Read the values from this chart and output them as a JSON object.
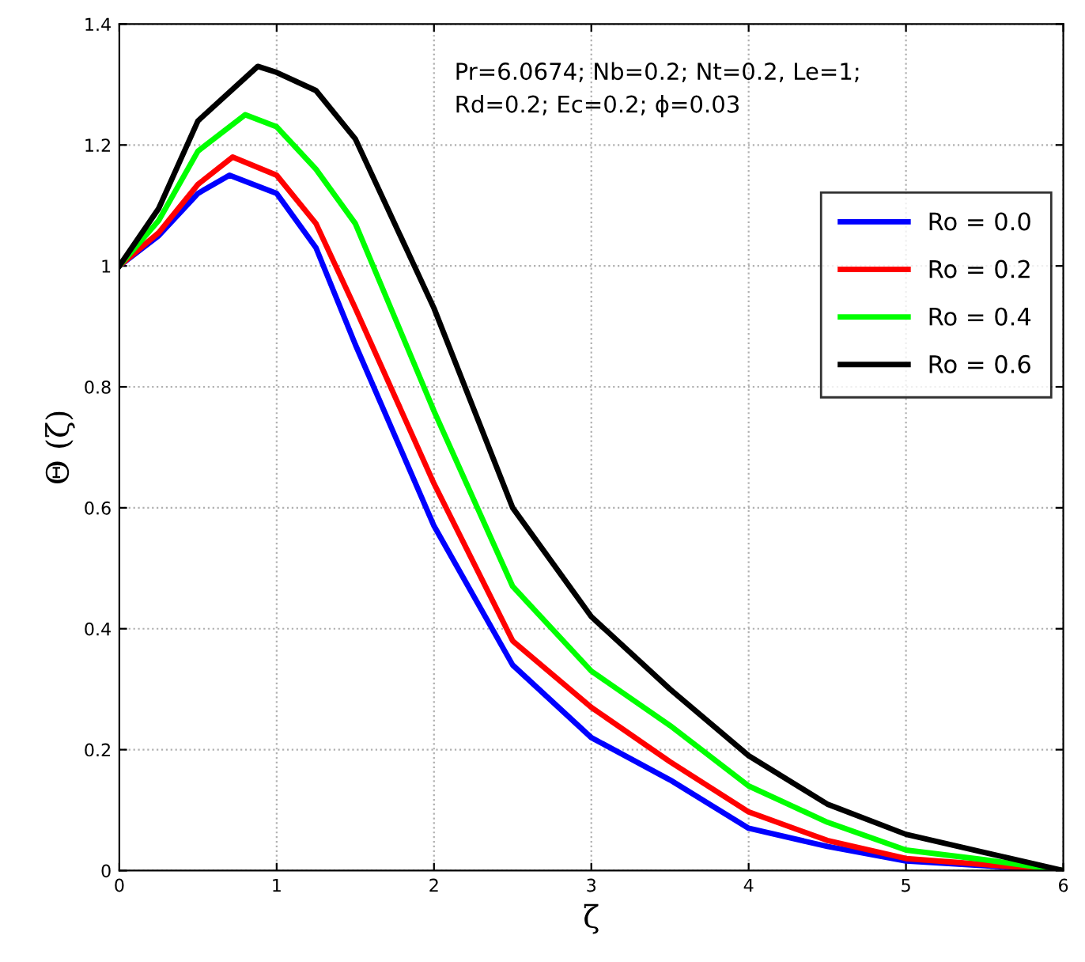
{
  "chart_data": {
    "type": "line",
    "xlabel": "ζ",
    "ylabel": "Θ (ζ)",
    "annotations": [
      "Pr=6.0674; Nb=0.2; Nt=0.2, Le=1;\nRd=0.2; Ec=0.2; ϕ=0.03"
    ],
    "xlim": [
      0,
      6
    ],
    "ylim": [
      0,
      1.4
    ],
    "xticks": [
      0,
      1,
      2,
      3,
      4,
      5,
      6
    ],
    "yticks": [
      0,
      0.2,
      0.4,
      0.6,
      0.8,
      1,
      1.2,
      1.4
    ],
    "grid": true,
    "legend": "center right",
    "line_style": "solid",
    "marker": "none",
    "series": [
      {
        "name": "Ro = 0.0",
        "color": "#0000ff",
        "x": [
          0,
          0.25,
          0.5,
          0.7,
          1,
          1.25,
          1.5,
          2,
          2.5,
          3,
          3.5,
          4,
          4.5,
          5,
          5.5,
          6
        ],
        "values": [
          1,
          1.05,
          1.12,
          1.15,
          1.12,
          1.03,
          0.87,
          0.57,
          0.34,
          0.22,
          0.15,
          0.07,
          0.04,
          0.016,
          0.008,
          0
        ]
      },
      {
        "name": "Ro = 0.2",
        "color": "#ff0000",
        "x": [
          0,
          0.25,
          0.5,
          0.72,
          1,
          1.25,
          1.5,
          2,
          2.5,
          3,
          3.5,
          4,
          4.5,
          5,
          5.5,
          6
        ],
        "values": [
          1,
          1.055,
          1.135,
          1.18,
          1.15,
          1.07,
          0.93,
          0.64,
          0.38,
          0.27,
          0.18,
          0.097,
          0.05,
          0.02,
          0.01,
          0
        ]
      },
      {
        "name": "Ro = 0.4",
        "color": "#00ff00",
        "x": [
          0,
          0.25,
          0.5,
          0.8,
          1,
          1.25,
          1.5,
          2,
          2.5,
          3,
          3.5,
          4,
          4.5,
          5,
          5.5,
          6
        ],
        "values": [
          1,
          1.075,
          1.19,
          1.25,
          1.23,
          1.16,
          1.07,
          0.76,
          0.47,
          0.33,
          0.24,
          0.14,
          0.08,
          0.034,
          0.018,
          0
        ]
      },
      {
        "name": "Ro = 0.6",
        "color": "#000000",
        "x": [
          0,
          0.25,
          0.5,
          0.88,
          1,
          1.25,
          1.5,
          2,
          2.5,
          3,
          3.5,
          4,
          4.5,
          5,
          5.5,
          6
        ],
        "values": [
          1,
          1.095,
          1.24,
          1.33,
          1.32,
          1.29,
          1.21,
          0.93,
          0.6,
          0.42,
          0.3,
          0.19,
          0.11,
          0.06,
          0.03,
          0
        ]
      }
    ]
  }
}
